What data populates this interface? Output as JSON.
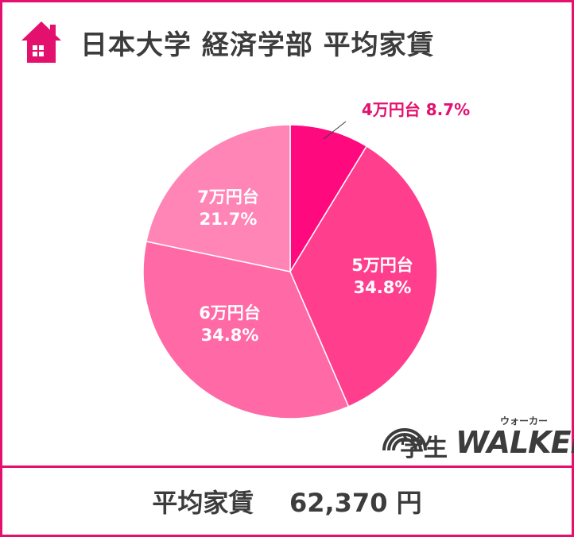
{
  "header": {
    "title": "日本大学 経済学部  平均家賃",
    "icon": "house-icon"
  },
  "footer": {
    "label": "平均家賃",
    "value": "62,370 円"
  },
  "logo": {
    "gaku": "学生",
    "walker": "WALKER",
    "kana": "ウォーカー"
  },
  "colors": {
    "border": "#e4106e",
    "text": "#3c3c3c"
  },
  "chart_data": {
    "type": "pie",
    "title": "",
    "slices": [
      {
        "label": "4万円台",
        "value": 8.7,
        "display": "8.7%",
        "color": "#ff0a7e"
      },
      {
        "label": "5万円台",
        "value": 34.8,
        "display": "34.8%",
        "color": "#ff3f8d"
      },
      {
        "label": "6万円台",
        "value": 34.8,
        "display": "34.8%",
        "color": "#ff6aa6"
      },
      {
        "label": "7万円台",
        "value": 21.7,
        "display": "21.7%",
        "color": "#ff85b7"
      }
    ],
    "start": "12 o'clock",
    "direction": "clockwise"
  }
}
